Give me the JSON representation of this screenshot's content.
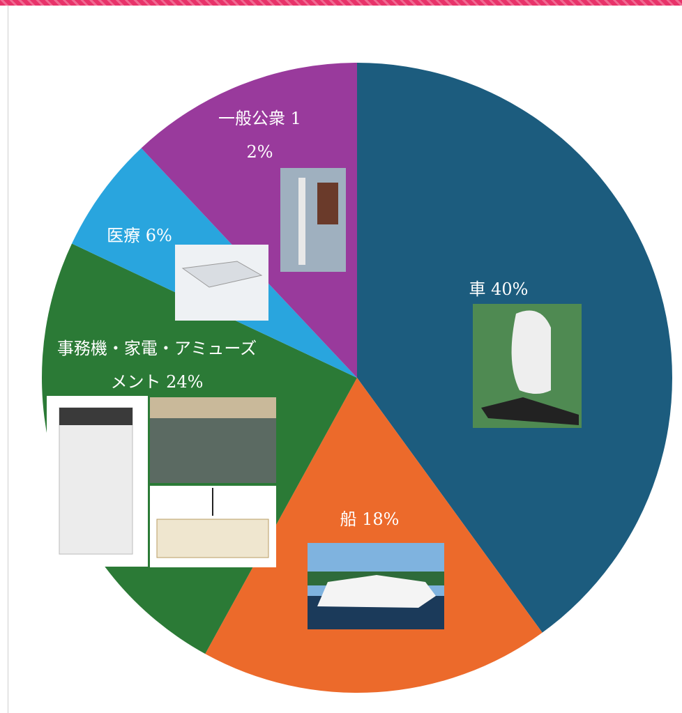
{
  "chart_data": {
    "type": "pie",
    "categories": [
      "車",
      "船",
      "事務機・家電・アミューズメント",
      "医療",
      "一般公衆"
    ],
    "values": [
      40,
      18,
      24,
      6,
      12
    ],
    "value_labels": [
      "40%",
      "18%",
      "24%",
      "6%",
      "12%"
    ],
    "colors": [
      "#1c5c7e",
      "#ec6a2b",
      "#2b7a36",
      "#29a5de",
      "#993a9c"
    ]
  }
}
